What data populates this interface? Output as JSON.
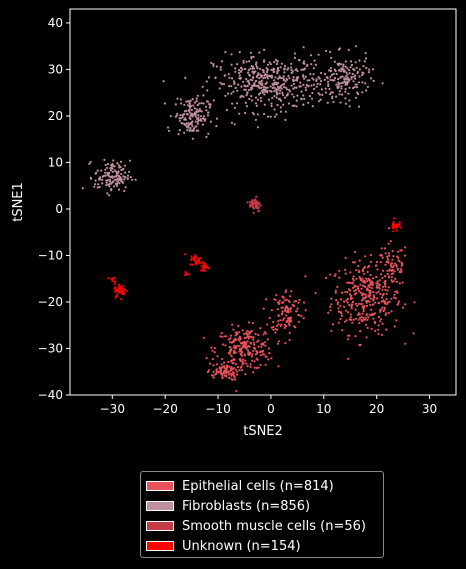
{
  "chart_data": {
    "type": "scatter",
    "xlabel": "tSNE2",
    "ylabel": "tSNE1",
    "xlim": [
      -38,
      35
    ],
    "ylim": [
      -40,
      43
    ],
    "xticks": [
      -30,
      -20,
      -10,
      0,
      10,
      20,
      30
    ],
    "yticks": [
      -40,
      -30,
      -20,
      -10,
      0,
      10,
      20,
      30,
      40
    ],
    "grid": false,
    "legend_position": "below",
    "series": [
      {
        "name": "Epithelial cells (n=814)",
        "color": "#e8525a",
        "n": 814,
        "clusters": [
          {
            "center": [
              18,
              -19
            ],
            "spread": [
              5.5,
              6.5
            ],
            "share": 0.42
          },
          {
            "center": [
              23,
              -12
            ],
            "spread": [
              2.5,
              4
            ],
            "share": 0.08
          },
          {
            "center": [
              -5,
              -30
            ],
            "spread": [
              4.5,
              3.8
            ],
            "share": 0.27
          },
          {
            "center": [
              3,
              -22
            ],
            "spread": [
              2.5,
              4
            ],
            "share": 0.13
          },
          {
            "center": [
              -9,
              -35
            ],
            "spread": [
              2.5,
              1.5
            ],
            "share": 0.1
          }
        ]
      },
      {
        "name": "Fibroblasts (n=856)",
        "color": "#c0909f",
        "n": 856,
        "clusters": [
          {
            "center": [
              0,
              27
            ],
            "spread": [
              9,
              5
            ],
            "share": 0.5
          },
          {
            "center": [
              14,
              28
            ],
            "spread": [
              4,
              4
            ],
            "share": 0.18
          },
          {
            "center": [
              -15,
              20
            ],
            "spread": [
              2.8,
              3.5
            ],
            "share": 0.17
          },
          {
            "center": [
              -30,
              7
            ],
            "spread": [
              2.8,
              2.8
            ],
            "share": 0.15
          }
        ]
      },
      {
        "name": "Smooth muscle cells (n=56)",
        "color": "#c43c44",
        "n": 56,
        "clusters": [
          {
            "center": [
              -3,
              1
            ],
            "spread": [
              0.9,
              1.3
            ],
            "share": 1.0
          }
        ]
      },
      {
        "name": "Unknown (n=154)",
        "color": "#ff0000",
        "n": 154,
        "clusters": [
          {
            "center": [
              -28.5,
              -17.5
            ],
            "spread": [
              0.9,
              1.2
            ],
            "share": 0.35
          },
          {
            "center": [
              -14,
              -11
            ],
            "spread": [
              1.1,
              1.0
            ],
            "share": 0.2
          },
          {
            "center": [
              -12.5,
              -12.5
            ],
            "spread": [
              0.7,
              0.8
            ],
            "share": 0.15
          },
          {
            "center": [
              -16,
              -14
            ],
            "spread": [
              0.5,
              0.6
            ],
            "share": 0.05
          },
          {
            "center": [
              23.5,
              -3.5
            ],
            "spread": [
              0.6,
              1.0
            ],
            "share": 0.2
          },
          {
            "center": [
              -30,
              -15
            ],
            "spread": [
              0.5,
              0.6
            ],
            "share": 0.05
          }
        ]
      }
    ]
  }
}
